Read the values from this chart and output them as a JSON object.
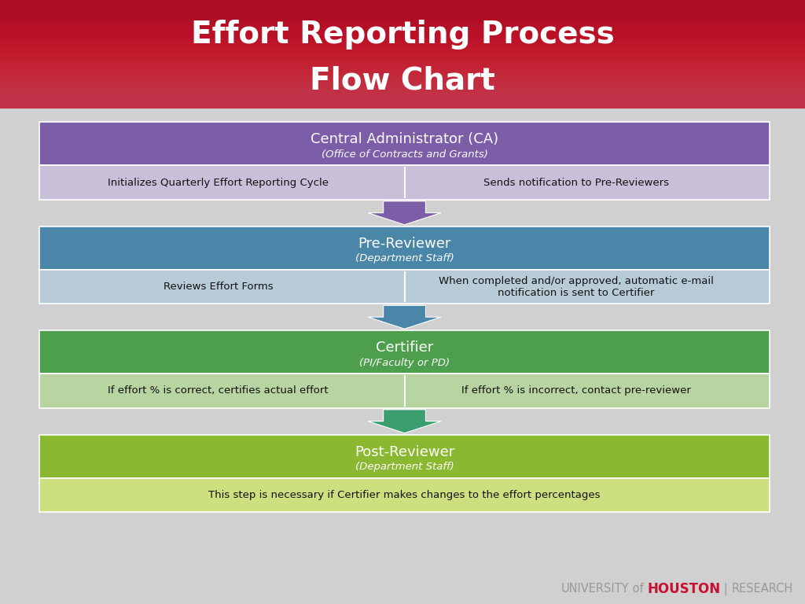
{
  "title_line1": "Effort Reporting Process",
  "title_line2": "Flow Chart",
  "title_bg_top": "#c0102a",
  "title_bg_bottom": "#8b0010",
  "title_text_color": "#ffffff",
  "outer_bg": "#d0d0d0",
  "inner_bg": "#e8e8e8",
  "blocks": [
    {
      "header_text": "Central Administrator (CA)",
      "header_sub": "(Office of Contracts and Grants)",
      "header_color": "#7b5ea7",
      "header_text_color": "#ffffff",
      "detail_color": "#c8c0d8",
      "detail_text_color": "#111111",
      "details": [
        "Initializes Quarterly Effort Reporting Cycle",
        "Sends notification to Pre-Reviewers"
      ],
      "arrow_color": "#7b5ea7",
      "two_col": true
    },
    {
      "header_text": "Pre-Reviewer",
      "header_sub": "(Department Staff)",
      "header_color": "#4a86a8",
      "header_text_color": "#ffffff",
      "detail_color": "#b8ccd8",
      "detail_text_color": "#111111",
      "details": [
        "Reviews Effort Forms",
        "When completed and/or approved, automatic e-mail\nnotification is sent to Certifier"
      ],
      "arrow_color": "#4a86a8",
      "two_col": true
    },
    {
      "header_text": "Certifier",
      "header_sub": "(PI/Faculty or PD)",
      "header_color": "#4d9e4d",
      "header_text_color": "#ffffff",
      "detail_color": "#b8d4a0",
      "detail_text_color": "#111111",
      "details": [
        "If effort % is correct, certifies actual effort",
        "If effort % is incorrect, contact pre-reviewer"
      ],
      "arrow_color": "#3a9e6e",
      "two_col": true
    },
    {
      "header_text": "Post-Reviewer",
      "header_sub": "(Department Staff)",
      "header_color": "#8ab830",
      "header_text_color": "#ffffff",
      "detail_color": "#cce080",
      "detail_text_color": "#111111",
      "details": [
        "This step is necessary if Certifier makes changes to the effort percentages"
      ],
      "arrow_color": "#3a9e6e",
      "two_col": false
    }
  ],
  "logo_parts": [
    {
      "text": "UNIVERSITY",
      "color": "#999999",
      "weight": "normal",
      "size": 11
    },
    {
      "text": "of ",
      "color": "#999999",
      "weight": "normal",
      "size": 11
    },
    {
      "text": "HOUSTON",
      "color": "#c8102e",
      "weight": "bold",
      "size": 13
    },
    {
      "text": "|",
      "color": "#999999",
      "weight": "normal",
      "size": 11
    },
    {
      "text": "RESEARCH",
      "color": "#999999",
      "weight": "normal",
      "size": 11
    }
  ]
}
